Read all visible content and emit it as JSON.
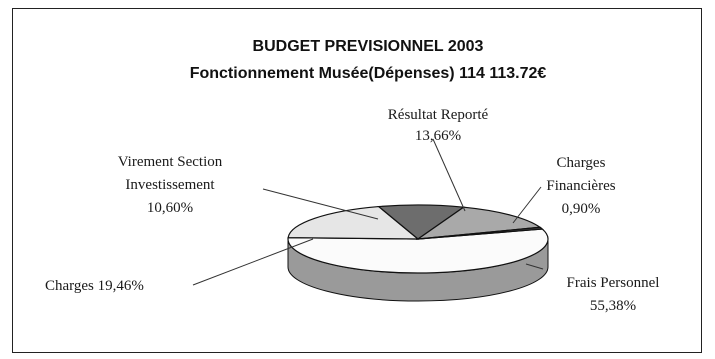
{
  "chart_data": {
    "type": "pie",
    "title": "BUDGET PREVISIONNEL 2003",
    "subtitle": "Fonctionnement Musée(Dépenses) 114 113.72€",
    "slices": [
      {
        "label": "Frais Personnel",
        "display": "55,38%",
        "value": 55.38,
        "color": "#fbfbfb"
      },
      {
        "label": "Charges",
        "display": "19,46%",
        "value": 19.46,
        "color": "#e6e6e6"
      },
      {
        "label": "Virement Section Investissement",
        "display": "10,60%",
        "value": 10.6,
        "color": "#6d6d6d"
      },
      {
        "label": "Résultat Reporté",
        "display": "13,66%",
        "value": 13.66,
        "color": "#a9a9a9"
      },
      {
        "label": "Charges Financières",
        "display": "0,90%",
        "value": 0.9,
        "color": "#3a3a3a"
      }
    ],
    "labels": {
      "frais_name": "Frais Personnel",
      "frais_pct": "55,38%",
      "charges_text": "Charges 19,46%",
      "virement_line1": "Virement Section",
      "virement_line2": "Investissement",
      "virement_pct": "10,60%",
      "resultat_name": "Résultat Reporté",
      "resultat_pct": "13,66%",
      "financieres_line1": "Charges",
      "financieres_line2": "Financières",
      "financieres_pct": "0,90%"
    },
    "colors": {
      "side": "#9a9a9a",
      "outline": "#111111"
    }
  }
}
